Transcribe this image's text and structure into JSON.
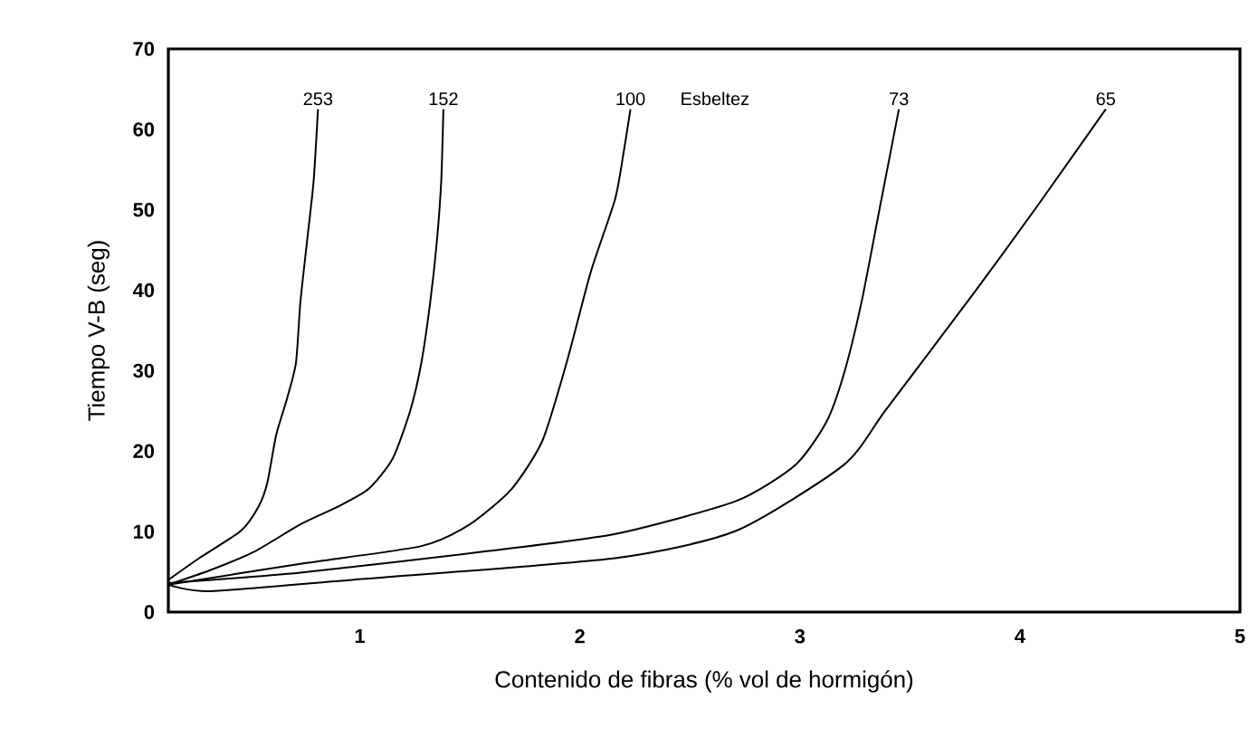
{
  "chart_data": {
    "type": "line",
    "xlabel": "Contenido de fibras (% vol de hormigón)",
    "ylabel": "Tiempo V-B (seg)",
    "annotations": [
      "Esbeltez"
    ],
    "xlim": [
      0.13,
      5
    ],
    "ylim": [
      0,
      70
    ],
    "xticks": [
      1,
      2,
      3,
      4,
      5
    ],
    "yticks": [
      0,
      10,
      20,
      30,
      40,
      50,
      60,
      70
    ],
    "grid": false,
    "legend": false,
    "marker": "none",
    "line_style": "solid",
    "series": [
      {
        "name": "253",
        "color": "#000000",
        "x": [
          0.13,
          0.27,
          0.46,
          0.54,
          0.58,
          0.62,
          0.67,
          0.71,
          0.73,
          0.76,
          0.79,
          0.81
        ],
        "values": [
          4.0,
          6.7,
          10.1,
          13.1,
          16.1,
          22,
          26.6,
          31,
          38.5,
          46,
          53.5,
          62.5
        ]
      },
      {
        "name": "152",
        "color": "#000000",
        "x": [
          0.13,
          0.32,
          0.52,
          0.73,
          0.9,
          1.04,
          1.15,
          1.23,
          1.28,
          1.32,
          1.35,
          1.37,
          1.38
        ],
        "values": [
          3.4,
          5.2,
          7.5,
          10.9,
          13.1,
          15.3,
          19.1,
          25.1,
          31,
          38.5,
          46,
          53.5,
          62.5
        ]
      },
      {
        "name": "100",
        "color": "#000000",
        "x": [
          0.13,
          0.73,
          1.28,
          1.5,
          1.69,
          1.83,
          1.94,
          2.05,
          2.16,
          2.2,
          2.23
        ],
        "values": [
          3.4,
          6.0,
          8.2,
          10.9,
          15.3,
          21.3,
          31,
          42.3,
          51.3,
          57.3,
          62.5
        ]
      },
      {
        "name": "73",
        "color": "#000000",
        "x": [
          0.13,
          0.73,
          1.56,
          2.16,
          2.71,
          2.98,
          3.12,
          3.2,
          3.28,
          3.36,
          3.45
        ],
        "values": [
          3.6,
          4.9,
          7.5,
          9.7,
          13.8,
          18.3,
          23.6,
          29.6,
          38.5,
          49.8,
          62.5
        ]
      },
      {
        "name": "65",
        "color": "#000000",
        "x": [
          0.13,
          0.32,
          1.01,
          2.16,
          2.71,
          3.2,
          3.39,
          3.8,
          4.08,
          4.39
        ],
        "values": [
          3.4,
          2.6,
          4.1,
          6.7,
          10.1,
          18.3,
          25.1,
          40,
          50.5,
          62.5
        ]
      }
    ]
  }
}
